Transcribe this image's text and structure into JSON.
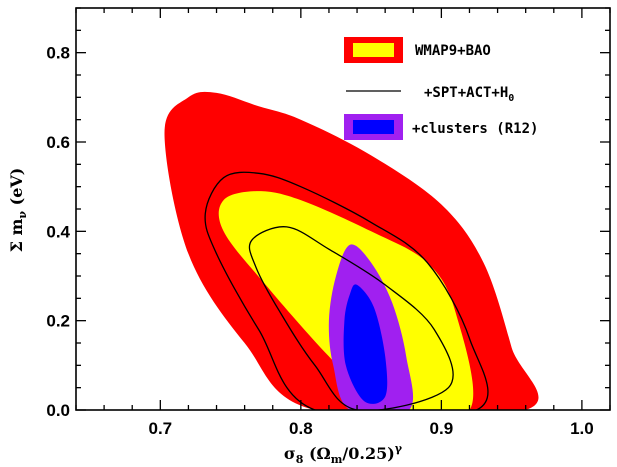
{
  "chart_data": {
    "type": "contour",
    "xlim": [
      0.64,
      1.02
    ],
    "ylim": [
      0.0,
      0.9
    ],
    "xticks": [
      "0.7",
      "0.8",
      "0.9",
      "1.0"
    ],
    "yticks": [
      "0.0",
      "0.2",
      "0.4",
      "0.6",
      "0.8"
    ],
    "xlabel": {
      "base": "σ",
      "sub8": "8",
      "mid": " (Ω",
      "subm": "m",
      "tail": "/0.25)",
      "sup": "γ"
    },
    "ylabel": {
      "base": "Σ m",
      "sub": "ν",
      "tail": " (eV)"
    },
    "colors": {
      "outer": "#ff0000",
      "inner": "#ffff00",
      "cl_outer": "#a020f0",
      "cl_inner": "#0000ff",
      "line": "#000000"
    },
    "legend": [
      {
        "label": "WMAP9+BAO",
        "style": "filled",
        "outer": "#ff0000",
        "inner": "#ffff00"
      },
      {
        "label": "+SPT+ACT+H",
        "sub": "0",
        "style": "line",
        "color": "#000000"
      },
      {
        "label": "+clusters (R12)",
        "style": "filled",
        "outer": "#a020f0",
        "inner": "#0000ff"
      }
    ],
    "legend_position": "top-right",
    "series": [
      {
        "region": "WMAP9+BAO 95%",
        "points": [
          [
            0.703,
            0.62
          ],
          [
            0.72,
            0.7
          ],
          [
            0.74,
            0.71
          ],
          [
            0.77,
            0.68
          ],
          [
            0.8,
            0.65
          ],
          [
            0.85,
            0.57
          ],
          [
            0.9,
            0.46
          ],
          [
            0.93,
            0.33
          ],
          [
            0.95,
            0.14
          ],
          [
            0.96,
            0.0
          ],
          [
            0.81,
            0.0
          ],
          [
            0.76,
            0.15
          ],
          [
            0.72,
            0.35
          ]
        ]
      },
      {
        "region": "WMAP9+BAO 68%",
        "points": [
          [
            0.745,
            0.47
          ],
          [
            0.77,
            0.49
          ],
          [
            0.8,
            0.47
          ],
          [
            0.85,
            0.4
          ],
          [
            0.89,
            0.33
          ],
          [
            0.91,
            0.22
          ],
          [
            0.92,
            0.0
          ],
          [
            0.86,
            0.0
          ],
          [
            0.82,
            0.12
          ],
          [
            0.775,
            0.28
          ],
          [
            0.745,
            0.4
          ]
        ]
      },
      {
        "region": "+SPT+ACT+H0 95%",
        "points": [
          [
            0.732,
            0.44
          ],
          [
            0.745,
            0.52
          ],
          [
            0.77,
            0.53
          ],
          [
            0.8,
            0.5
          ],
          [
            0.85,
            0.42
          ],
          [
            0.89,
            0.33
          ],
          [
            0.92,
            0.16
          ],
          [
            0.925,
            0.0
          ],
          [
            0.81,
            0.0
          ],
          [
            0.77,
            0.18
          ],
          [
            0.74,
            0.35
          ]
        ]
      },
      {
        "region": "+SPT+ACT+H0 68%",
        "points": [
          [
            0.765,
            0.38
          ],
          [
            0.79,
            0.41
          ],
          [
            0.82,
            0.36
          ],
          [
            0.86,
            0.28
          ],
          [
            0.895,
            0.18
          ],
          [
            0.905,
            0.05
          ],
          [
            0.84,
            0.0
          ],
          [
            0.81,
            0.1
          ],
          [
            0.785,
            0.22
          ],
          [
            0.768,
            0.32
          ]
        ]
      },
      {
        "region": "+clusters 95%",
        "points": [
          [
            0.835,
            0.37
          ],
          [
            0.85,
            0.33
          ],
          [
            0.865,
            0.24
          ],
          [
            0.875,
            0.12
          ],
          [
            0.877,
            0.0
          ],
          [
            0.835,
            0.0
          ],
          [
            0.823,
            0.1
          ],
          [
            0.82,
            0.2
          ],
          [
            0.825,
            0.3
          ]
        ]
      },
      {
        "region": "+clusters 68%",
        "points": [
          [
            0.84,
            0.28
          ],
          [
            0.852,
            0.23
          ],
          [
            0.86,
            0.12
          ],
          [
            0.86,
            0.03
          ],
          [
            0.845,
            0.02
          ],
          [
            0.832,
            0.1
          ],
          [
            0.831,
            0.2
          ],
          [
            0.835,
            0.26
          ]
        ]
      }
    ]
  }
}
